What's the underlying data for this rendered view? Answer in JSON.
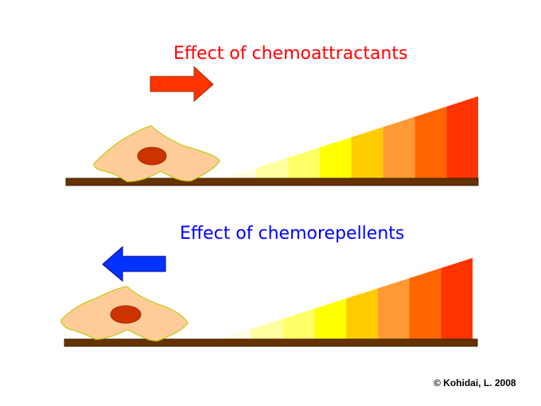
{
  "attract_panel": {
    "title": "Effect of chemoattractants",
    "arrow_direction": "right",
    "arrow_color": "#ff3300"
  },
  "repel_panel": {
    "title": "Effect of chemorepellents",
    "arrow_direction": "left",
    "arrow_color": "#0033ff"
  },
  "gradient_colors": [
    "#ffffe0",
    "#ffffa0",
    "#ffff66",
    "#ffff00",
    "#ffcc00",
    "#ff9933",
    "#ff6600",
    "#ff3300"
  ],
  "cell": {
    "body_color": "#ffcc99",
    "outline_color": "#cccc33",
    "nucleus_color": "#cc3300"
  },
  "surface_color": "#663300",
  "copyright": "© Kohidai, L. 2008"
}
